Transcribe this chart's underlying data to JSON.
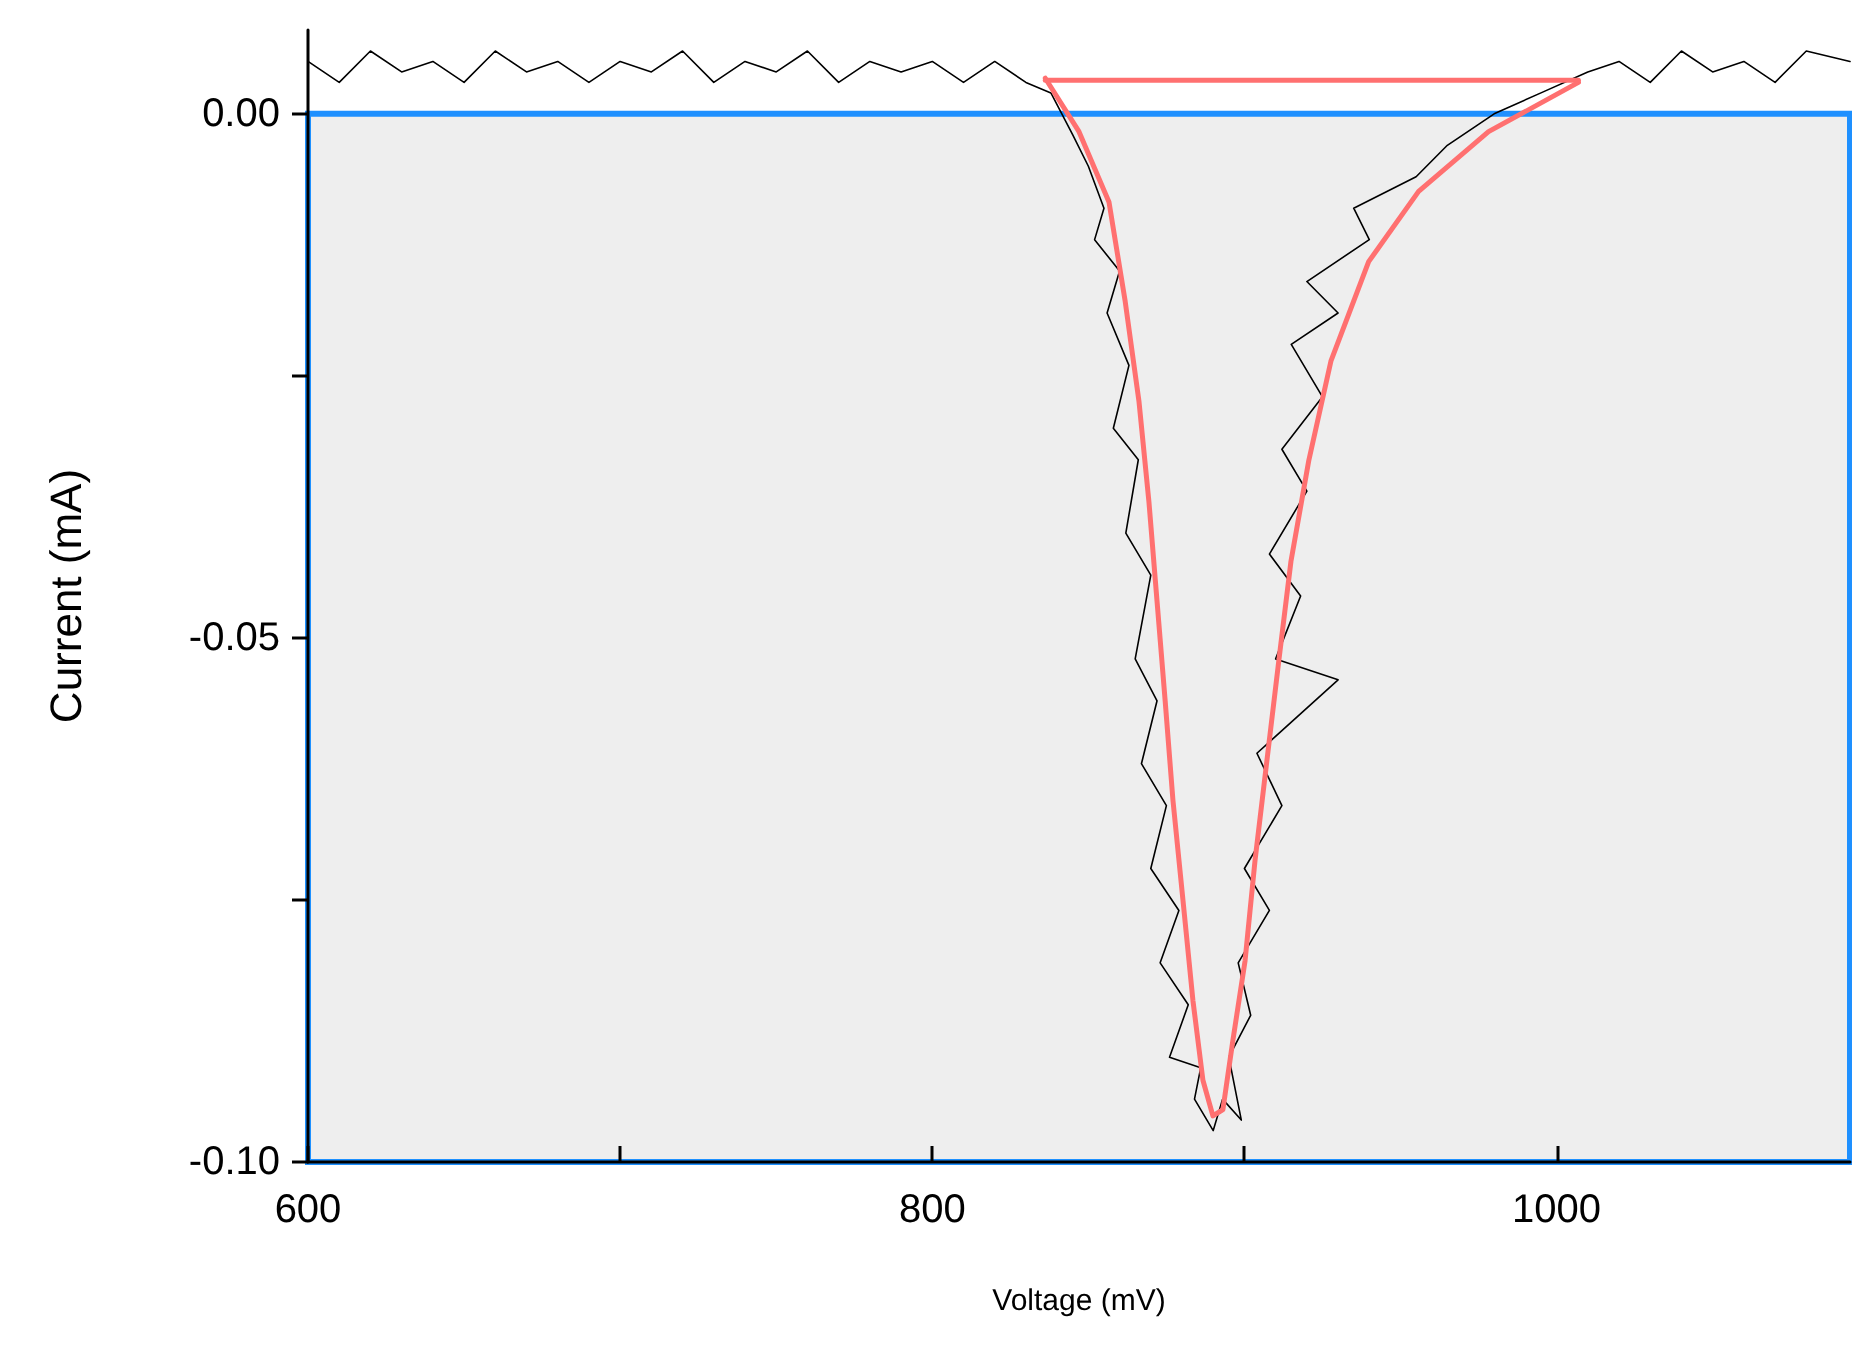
{
  "chart_data": {
    "type": "line",
    "xlabel": "Voltage (mV)",
    "ylabel": "Current (mA)",
    "xlim": [
      600,
      1094
    ],
    "xticks": [
      600,
      {
        "value": 700,
        "label": null
      },
      800,
      {
        "value": 900,
        "label": null
      },
      1000
    ],
    "ylim": [
      -0.1,
      0.008
    ],
    "yticks": [
      {
        "value": -0.1,
        "label": "-0.10"
      },
      {
        "value": -0.075,
        "label": null
      },
      {
        "value": -0.05,
        "label": "-0.05"
      },
      {
        "value": -0.025,
        "label": null
      },
      {
        "value": 0,
        "label": "0.00"
      }
    ],
    "grid": false,
    "marker": "none",
    "line_style": "solid",
    "bands": [
      {
        "axis": "y",
        "from": -0.1,
        "to": 0,
        "color": "#1e90ff"
      }
    ],
    "series": [
      {
        "color": "#000000",
        "x": [
          600,
          610,
          620,
          630,
          640,
          650,
          660,
          670,
          680,
          690,
          700,
          710,
          720,
          730,
          740,
          750,
          760,
          770,
          780,
          790,
          800,
          810,
          820,
          830,
          838,
          845,
          850,
          855,
          852,
          860,
          856,
          863,
          858,
          866,
          862,
          870,
          865,
          872,
          867,
          875,
          870,
          879,
          873,
          882,
          876,
          886,
          884,
          890,
          893,
          899,
          895,
          902,
          898,
          908,
          900,
          912,
          904,
          930,
          910,
          918,
          908,
          920,
          912,
          925,
          915,
          930,
          920,
          940,
          935,
          955,
          965,
          980,
          995,
          1010,
          1020,
          1030,
          1040,
          1050,
          1060,
          1070,
          1080,
          1094
        ],
        "values": [
          0.005,
          0.003,
          0.006,
          0.004,
          0.005,
          0.003,
          0.006,
          0.004,
          0.005,
          0.003,
          0.005,
          0.004,
          0.006,
          0.003,
          0.005,
          0.004,
          0.006,
          0.003,
          0.005,
          0.004,
          0.005,
          0.003,
          0.005,
          0.003,
          0.002,
          -0.002,
          -0.005,
          -0.009,
          -0.012,
          -0.015,
          -0.019,
          -0.024,
          -0.03,
          -0.033,
          -0.04,
          -0.044,
          -0.052,
          -0.056,
          -0.062,
          -0.066,
          -0.072,
          -0.076,
          -0.081,
          -0.085,
          -0.09,
          -0.091,
          -0.094,
          -0.097,
          -0.094,
          -0.096,
          -0.09,
          -0.086,
          -0.081,
          -0.076,
          -0.072,
          -0.066,
          -0.061,
          -0.054,
          -0.052,
          -0.046,
          -0.042,
          -0.036,
          -0.032,
          -0.027,
          -0.022,
          -0.019,
          -0.016,
          -0.012,
          -0.009,
          -0.006,
          -0.003,
          0.0,
          0.002,
          0.004,
          0.005,
          0.003,
          0.006,
          0.004,
          0.005,
          0.003,
          0.006,
          0.005
        ]
      },
      {
        "color": "#ff7070",
        "x": [
          836.2,
          847.0,
          856.6,
          861.8,
          866.2,
          869.4,
          872.0,
          874.6,
          877.1,
          880.3,
          883.5,
          886.7,
          889.9,
          893.1,
          896.3,
          900.2,
          903.4,
          907.2,
          911.0,
          914.9,
          920.6,
          927.7,
          939.8,
          955.8,
          978.2,
          1007.0
        ],
        "values": [
          0.0034,
          -0.0017,
          -0.0084,
          -0.0179,
          -0.0274,
          -0.037,
          -0.0465,
          -0.056,
          -0.0655,
          -0.075,
          -0.0846,
          -0.0922,
          -0.0956,
          -0.095,
          -0.0884,
          -0.0808,
          -0.0712,
          -0.0617,
          -0.0522,
          -0.0427,
          -0.0331,
          -0.0236,
          -0.0141,
          -0.0074,
          -0.0017,
          0.003
        ]
      },
      {
        "color": "#ff7070",
        "x": [
          836.2,
          1007.0
        ],
        "values": [
          0.0032,
          0.0032
        ]
      }
    ]
  }
}
